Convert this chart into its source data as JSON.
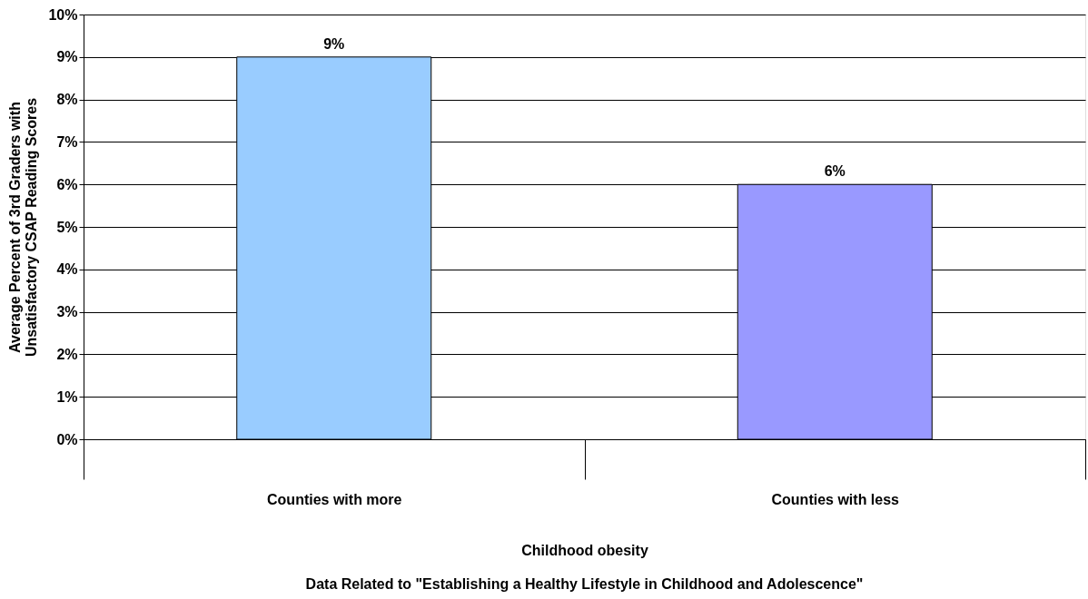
{
  "chart_data": {
    "type": "bar",
    "categories": [
      "Counties with more",
      "Counties with less"
    ],
    "values": [
      9,
      6
    ],
    "colors": [
      "#99ccff",
      "#9999ff"
    ],
    "value_labels": [
      "9%",
      "6%"
    ],
    "xlabel": "Childhood obesity",
    "ylabel": "Average Percent of 3rd Graders with\nUnsatisfactory CSAP Reading Scores",
    "ylim": [
      0,
      10
    ],
    "yticks": [
      {
        "value": 0,
        "label": "0%"
      },
      {
        "value": 1,
        "label": "1%"
      },
      {
        "value": 2,
        "label": "2%"
      },
      {
        "value": 3,
        "label": "3%"
      },
      {
        "value": 4,
        "label": "4%"
      },
      {
        "value": 5,
        "label": "5%"
      },
      {
        "value": 6,
        "label": "6%"
      },
      {
        "value": 7,
        "label": "7%"
      },
      {
        "value": 8,
        "label": "8%"
      },
      {
        "value": 9,
        "label": "9%"
      },
      {
        "value": 10,
        "label": "10%"
      }
    ],
    "annotations": [
      "Data Related to \"Establishing a Healthy Lifestyle in Childhood and Adolescence\""
    ],
    "grid": "y"
  }
}
